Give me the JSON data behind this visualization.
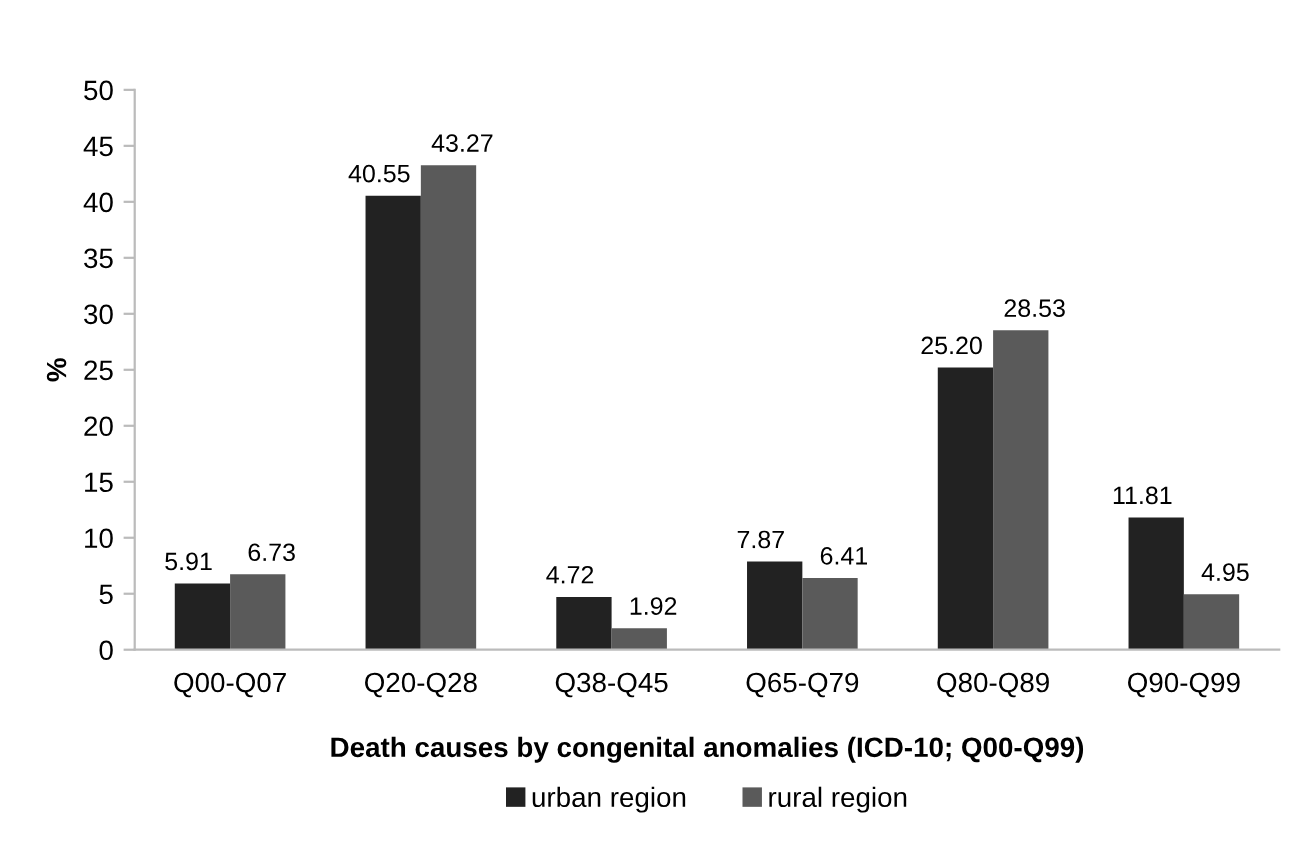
{
  "chart_data": {
    "type": "bar",
    "xlabel": "Death causes by congenital anomalies (ICD-10; Q00-Q99)",
    "ylabel": "%",
    "categories": [
      "Q00-Q07",
      "Q20-Q28",
      "Q38-Q45",
      "Q65-Q79",
      "Q80-Q89",
      "Q90-Q99"
    ],
    "series": [
      {
        "name": "urban region",
        "color": "#222222",
        "values": [
          5.91,
          40.55,
          4.72,
          7.87,
          25.2,
          11.81
        ],
        "value_labels": [
          "5.91",
          "40.55",
          "4.72",
          "7.87",
          "25.20",
          "11.81"
        ]
      },
      {
        "name": "rural region",
        "color": "#5a5a5a",
        "values": [
          6.73,
          43.27,
          1.92,
          6.41,
          28.53,
          4.95
        ],
        "value_labels": [
          "6.73",
          "43.27",
          "1.92",
          "6.41",
          "28.53",
          "4.95"
        ]
      }
    ],
    "ylim": [
      0,
      50
    ],
    "yticks": [
      0,
      5,
      10,
      15,
      20,
      25,
      30,
      35,
      40,
      45,
      50
    ],
    "grid": false,
    "legend": "bottom"
  }
}
